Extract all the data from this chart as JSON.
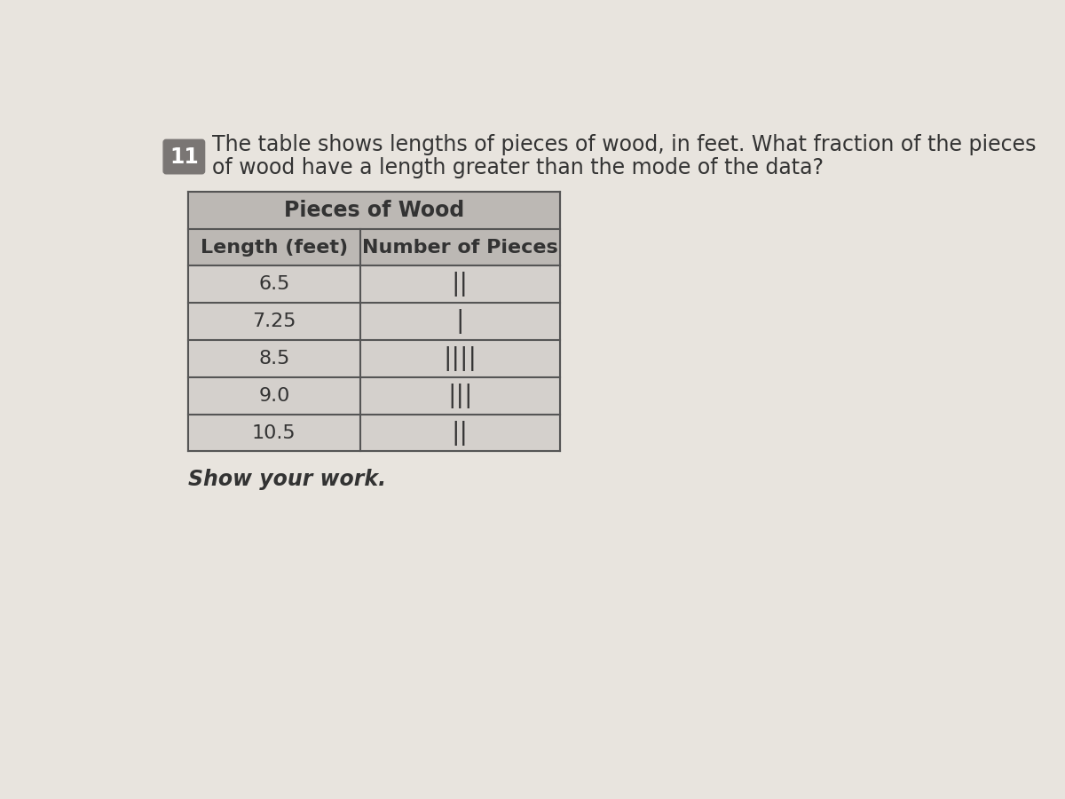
{
  "question_number": "11",
  "question_text_line1": "The table shows lengths of pieces of wood, in feet. What fraction of the pieces",
  "question_text_line2": "of wood have a length greater than the mode of the data?",
  "table_title": "Pieces of Wood",
  "col1_header": "Length (feet)",
  "col2_header": "Number of Pieces",
  "lengths": [
    "6.5",
    "7.25",
    "8.5",
    "9.0",
    "10.5"
  ],
  "tally_display": [
    "||",
    "|",
    "||||",
    "|||",
    "||"
  ],
  "show_work_text": "Show your work.",
  "bg_color": "#e8e4de",
  "table_header_bg": "#bcb8b4",
  "table_data_bg": "#d4d0cc",
  "table_border_color": "#555555",
  "text_color": "#333333",
  "question_num_bg": "#7a7674",
  "question_num_color": "#ffffff"
}
